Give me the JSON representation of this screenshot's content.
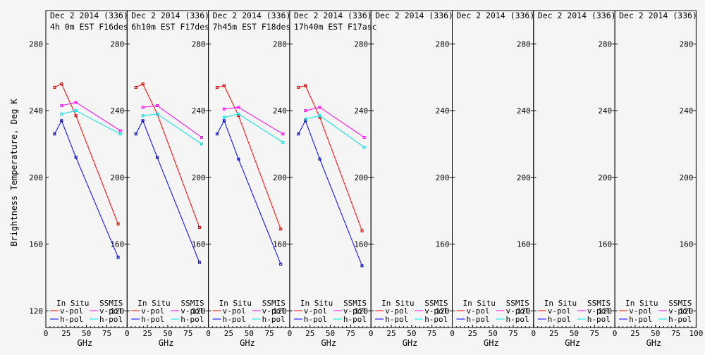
{
  "chart_data": {
    "type": "line",
    "ylabel": "Brightness Temperature, Deg K",
    "xlabel": "GHz",
    "ylim": [
      110,
      300
    ],
    "xlim": [
      0,
      100
    ],
    "y_ticks": [
      120,
      160,
      200,
      240,
      280
    ],
    "x_ticks": [
      "0",
      "25",
      "50",
      "75",
      "100"
    ],
    "x_ticks_last": [
      "0",
      "25",
      "50",
      "75",
      "100"
    ],
    "legend": {
      "in_situ": "In Situ",
      "ssmis": "SSMIS",
      "vpol": "v-pol",
      "hpol": "h-pol"
    },
    "colors": {
      "insitu_v": "#ff0000",
      "insitu_h": "#0000ff",
      "ssmis_v": "#ff00ff",
      "ssmis_h": "#00e5e5",
      "marker_v": "#cc0000",
      "marker_h": "#0000aa"
    },
    "panels": [
      {
        "title1": "Dec 2 2014 (336)",
        "title2": "4h 0m  EST F16des",
        "series": {
          "insitu_v": {
            "x": [
              10.7,
              19.35,
              37,
              89
            ],
            "y": [
              254,
              256,
              237,
              172
            ]
          },
          "insitu_h": {
            "x": [
              10.7,
              19.35,
              37,
              89
            ],
            "y": [
              226,
              234,
              212,
              152
            ]
          },
          "ssmis_v": {
            "x": [
              19.35,
              37,
              91.655
            ],
            "y": [
              243,
              245,
              228
            ]
          },
          "ssmis_h": {
            "x": [
              19.35,
              37,
              91.655
            ],
            "y": [
              238,
              240,
              226
            ]
          }
        }
      },
      {
        "title1": "Dec 2 2014 (336)",
        "title2": "6h10m  EST F17des",
        "series": {
          "insitu_v": {
            "x": [
              10.7,
              19.35,
              37,
              89
            ],
            "y": [
              254,
              256,
              238,
              170
            ]
          },
          "insitu_h": {
            "x": [
              10.7,
              19.35,
              37,
              89
            ],
            "y": [
              226,
              234,
              212,
              149
            ]
          },
          "ssmis_v": {
            "x": [
              19.35,
              37,
              91.655
            ],
            "y": [
              242,
              243,
              224
            ]
          },
          "ssmis_h": {
            "x": [
              19.35,
              37,
              91.655
            ],
            "y": [
              237,
              238,
              220
            ]
          }
        }
      },
      {
        "title1": "Dec 2 2014 (336)",
        "title2": "7h45m  EST F18des",
        "series": {
          "insitu_v": {
            "x": [
              10.7,
              19.35,
              37,
              89
            ],
            "y": [
              254,
              255,
              237,
              169
            ]
          },
          "insitu_h": {
            "x": [
              10.7,
              19.35,
              37,
              89
            ],
            "y": [
              226,
              234,
              211,
              148
            ]
          },
          "ssmis_v": {
            "x": [
              19.35,
              37,
              91.655
            ],
            "y": [
              241,
              242,
              226
            ]
          },
          "ssmis_h": {
            "x": [
              19.35,
              37,
              91.655
            ],
            "y": [
              236,
              238,
              221
            ]
          }
        }
      },
      {
        "title1": "Dec 2 2014 (336)",
        "title2": "17h40m  EST F17asc",
        "series": {
          "insitu_v": {
            "x": [
              10.7,
              19.35,
              37,
              89
            ],
            "y": [
              254,
              255,
              236,
              168
            ]
          },
          "insitu_h": {
            "x": [
              10.7,
              19.35,
              37,
              89
            ],
            "y": [
              226,
              234,
              211,
              147
            ]
          },
          "ssmis_v": {
            "x": [
              19.35,
              37,
              91.655
            ],
            "y": [
              240,
              242,
              224
            ]
          },
          "ssmis_h": {
            "x": [
              19.35,
              37,
              91.655
            ],
            "y": [
              235,
              237,
              218
            ]
          }
        }
      },
      {
        "title1": "Dec 2 2014 (336)",
        "title2": "",
        "series": {}
      },
      {
        "title1": "Dec 2 2014 (336)",
        "title2": "",
        "series": {}
      },
      {
        "title1": "Dec 2 2014 (336)",
        "title2": "",
        "series": {}
      },
      {
        "title1": "Dec 2 2014 (336)",
        "title2": "",
        "series": {}
      }
    ]
  }
}
